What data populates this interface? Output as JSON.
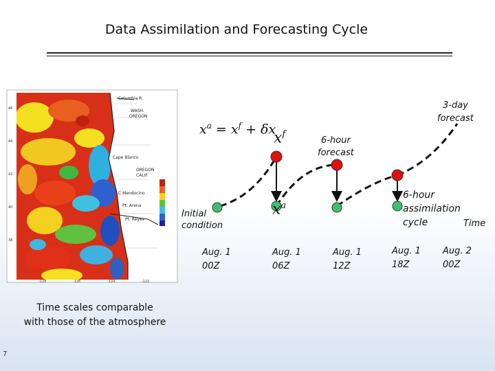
{
  "slide": {
    "title": "Data Assimilation and Forecasting Cycle",
    "caption_line1": "Time scales comparable",
    "caption_line2": "with those of the atmosphere",
    "number": "7"
  },
  "equation": {
    "lhs": "x",
    "lhs_sup": "a",
    "equals": "=",
    "term1": "x",
    "term1_sup": "f",
    "plus": "+",
    "delta": "δx"
  },
  "labels": {
    "xf": "x",
    "xf_sup": "f",
    "xa": "x",
    "xa_sup": "a",
    "initial_condition_line1": "Initial",
    "initial_condition_line2": "condition",
    "six_hour_forecast_line1": "6-hour",
    "six_hour_forecast_line2": "forecast",
    "three_day_forecast_line1": "3-day",
    "three_day_forecast_line2": "forecast",
    "assim_line1": "6-hour",
    "assim_line2": "assimilation",
    "assim_line3": "cycle",
    "time": "Time"
  },
  "timeline": [
    {
      "day": "Aug. 1",
      "hour": "00Z"
    },
    {
      "day": "Aug. 1",
      "hour": "06Z"
    },
    {
      "day": "Aug. 1",
      "hour": "12Z"
    },
    {
      "day": "Aug. 1",
      "hour": "18Z"
    },
    {
      "day": "Aug. 2",
      "hour": "00Z"
    }
  ],
  "map": {
    "place_labels": [
      "Columbia R.",
      "WASH. OREGON",
      "Cape Blanco",
      "OREGON CALIF.",
      "C.Mendocino",
      "Pt. Arena",
      "Pt. Reyes"
    ]
  },
  "colors": {
    "forecast_node": "#e01010",
    "analysis_node": "#3fc070",
    "line": "#111111"
  }
}
